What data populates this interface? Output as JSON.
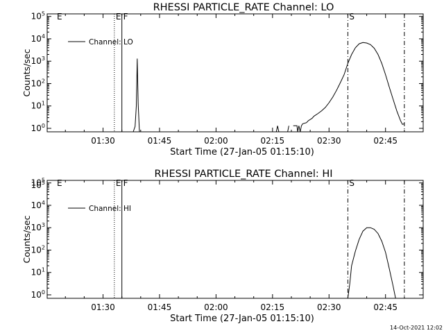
{
  "footer": {
    "timestamp": "14-Oct-2021 12:02"
  },
  "chart_data": [
    {
      "type": "line",
      "title": "RHESSI PARTICLE_RATE Channel: LO",
      "xlabel": "Start Time (27-Jan-05 01:15:10)",
      "ylabel": "Counts/sec",
      "y_scale": "log",
      "ylim": [
        0.7,
        130000
      ],
      "xlim": [
        "01:15:10",
        "02:55:00"
      ],
      "x_ticks": [
        "01:30",
        "01:45",
        "02:00",
        "02:15",
        "02:30",
        "02:45"
      ],
      "y_ticks": [
        "10^0",
        "10^1",
        "10^2",
        "10^3",
        "10^4",
        "10^5"
      ],
      "legend": {
        "placement": "top-left",
        "entries": [
          "Channel: LO"
        ]
      },
      "grid": false,
      "markers": [
        {
          "time": "01:33:00",
          "label": "E",
          "style": "dotted"
        },
        {
          "time": "01:35:00",
          "label": "F",
          "style": "solid"
        },
        {
          "time": "02:35:00",
          "label": "S",
          "style": "dash-dot"
        },
        {
          "time": "02:50:00",
          "label": "",
          "style": "dash-dot"
        }
      ],
      "series": [
        {
          "name": "Channel: LO",
          "segments": [
            {
              "x": [
                "01:38:00",
                "01:38:30",
                "01:38:50",
                "01:39:05",
                "01:39:20",
                "01:39:40"
              ],
              "y": [
                0.7,
                1.2,
                10,
                1300,
                12,
                0.7
              ]
            },
            {
              "x": [
                "02:16:00",
                "02:16:20",
                "02:16:40"
              ],
              "y": [
                0.7,
                1.3,
                0.7
              ]
            },
            {
              "x": [
                "02:19:00",
                "02:19:20"
              ],
              "y": [
                0.7,
                1.3
              ]
            },
            {
              "x": [
                "02:20:30",
                "02:21:30",
                "02:21:40",
                "02:22:00",
                "02:22:20",
                "02:22:40",
                "02:23:00",
                "02:24:00",
                "02:24:30",
                "02:25:30",
                "02:26:00",
                "02:27:00",
                "02:28:00",
                "02:29:00",
                "02:30:00",
                "02:31:00",
                "02:32:00",
                "02:33:00",
                "02:34:00",
                "02:35:00",
                "02:36:00",
                "02:37:00",
                "02:38:00",
                "02:39:00",
                "02:40:00",
                "02:41:00",
                "02:42:00",
                "02:43:00",
                "02:44:00",
                "02:45:00",
                "02:46:00",
                "02:47:00",
                "02:48:00",
                "02:49:00",
                "02:49:30",
                "02:50:00"
              ],
              "y": [
                1.3,
                1.3,
                0.7,
                1.3,
                0.7,
                1.3,
                1.6,
                1.8,
                2.2,
                2.8,
                3.5,
                4.5,
                6,
                8.5,
                14,
                25,
                50,
                110,
                250,
                800,
                2000,
                4000,
                6000,
                6800,
                6500,
                5500,
                3800,
                2000,
                800,
                250,
                70,
                20,
                6,
                2.2,
                1.5,
                1.6
              ]
            }
          ]
        }
      ]
    },
    {
      "type": "line",
      "title": "RHESSI PARTICLE_RATE Channel: HI",
      "xlabel": "Start Time (27-Jan-05 01:15:10)",
      "ylabel": "Counts/sec",
      "y_scale": "log",
      "ylim": [
        0.7,
        130000
      ],
      "xlim": [
        "01:15:10",
        "02:55:00"
      ],
      "x_ticks": [
        "01:30",
        "01:45",
        "02:00",
        "02:15",
        "02:30",
        "02:45"
      ],
      "y_ticks": [
        "10^0",
        "10^1",
        "10^2",
        "10^3",
        "10^4",
        "10^5",
        "10^5"
      ],
      "legend": {
        "placement": "top-left",
        "entries": [
          "Channel: HI"
        ]
      },
      "grid": false,
      "markers": [
        {
          "time": "01:33:00",
          "label": "E",
          "style": "dotted"
        },
        {
          "time": "01:35:00",
          "label": "F",
          "style": "solid"
        },
        {
          "time": "02:35:00",
          "label": "S",
          "style": "dash-dot"
        },
        {
          "time": "02:50:00",
          "label": "",
          "style": "dash-dot"
        }
      ],
      "series": [
        {
          "name": "Channel: HI",
          "segments": [
            {
              "x": [
                "02:35:00",
                "02:35:30",
                "02:36:00",
                "02:37:00",
                "02:38:00",
                "02:39:00",
                "02:40:00",
                "02:41:00",
                "02:42:00",
                "02:43:00",
                "02:44:00",
                "02:45:00",
                "02:46:00",
                "02:47:00",
                "02:47:40"
              ],
              "y": [
                0.7,
                3,
                20,
                90,
                300,
                700,
                1000,
                1000,
                850,
                550,
                250,
                80,
                15,
                2.5,
                0.7
              ]
            }
          ]
        }
      ]
    }
  ]
}
